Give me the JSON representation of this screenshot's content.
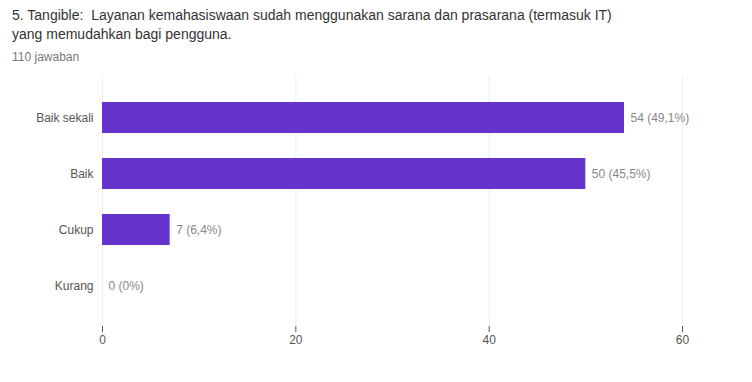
{
  "chart_data": {
    "type": "bar",
    "orientation": "horizontal",
    "title": "5. Tangible:  Layanan kemahasiswaan sudah menggunakan sarana dan prasarana (termasuk IT)\nyang memudahkan bagi pengguna.",
    "subtitle": "110 jawaban",
    "categories": [
      "Baik sekali",
      "Baik",
      "Cukup",
      "Kurang"
    ],
    "values": [
      54,
      50,
      7,
      0
    ],
    "value_labels": [
      "54 (49,1%)",
      "50 (45,5%)",
      "7 (6,4%)",
      "0 (0%)"
    ],
    "data_labels": true,
    "color": "#6633cc",
    "xlim": [
      0,
      60
    ],
    "xticks": [
      0,
      20,
      40,
      60
    ],
    "grid": true
  }
}
